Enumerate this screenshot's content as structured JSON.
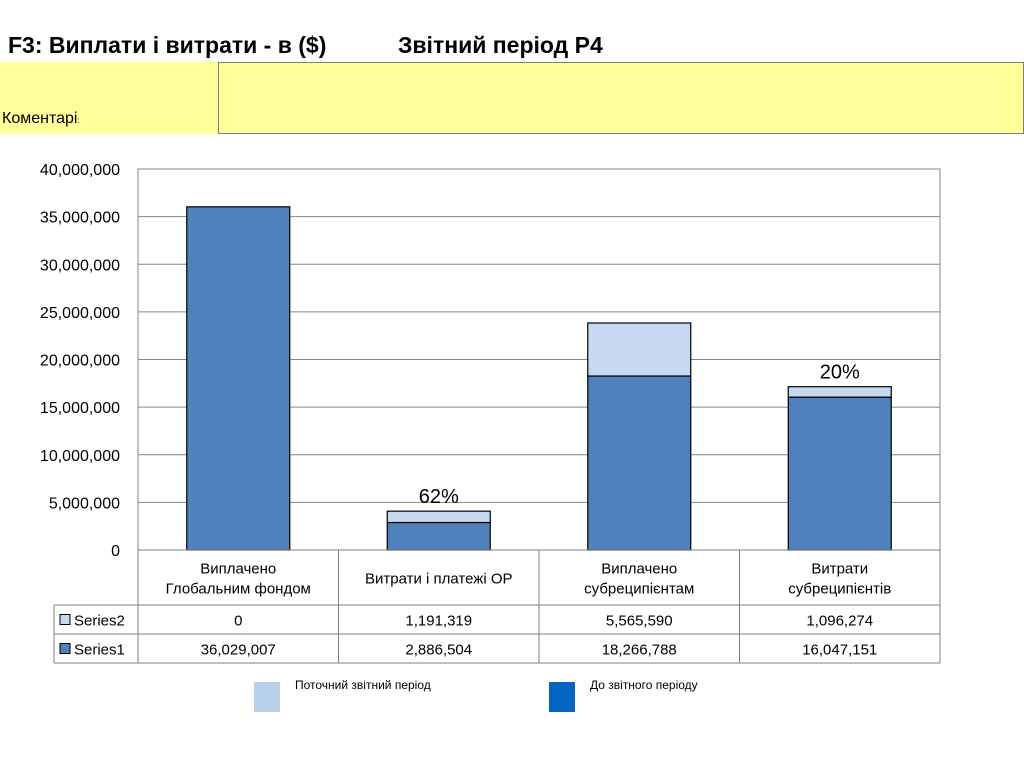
{
  "header": {
    "title": "F3: Виплати і витрати - в ($)",
    "period": "Звітний період Р4"
  },
  "comments": {
    "label": "Коментарі",
    "label_suffix": ":",
    "value": ""
  },
  "chart_data": {
    "type": "bar",
    "stacked": true,
    "categories": [
      [
        "Виплачено",
        "Глобальним фондом"
      ],
      [
        "Витрати і платежі ОР"
      ],
      [
        "Виплачено",
        "субреципієнтам"
      ],
      [
        "Витрати",
        "субреципієнтів"
      ]
    ],
    "series": [
      {
        "name": "Series1",
        "values": [
          36029007,
          2886504,
          18266788,
          16047151
        ],
        "value_labels": [
          "36,029,007",
          "2,886,504",
          "18,266,788",
          "16,047,151"
        ],
        "color": "#4f81bd"
      },
      {
        "name": "Series2",
        "values": [
          0,
          1191319,
          5565590,
          1096274
        ],
        "value_labels": [
          "0",
          "1,191,319",
          "5,565,590",
          "1,096,274"
        ],
        "color": "#c6d9f1"
      }
    ],
    "ylim": [
      0,
      40000000
    ],
    "yticks": [
      0,
      5000000,
      10000000,
      15000000,
      20000000,
      25000000,
      30000000,
      35000000,
      40000000
    ],
    "ytick_labels": [
      "0",
      "5,000,000",
      "10,000,000",
      "15,000,000",
      "20,000,000",
      "25,000,000",
      "30,000,000",
      "35,000,000",
      "40,000,000"
    ],
    "grid": true,
    "annotations": [
      {
        "category_index": 1,
        "text": "62%"
      },
      {
        "category_index": 3,
        "text": "20%"
      }
    ],
    "data_table": true
  },
  "legend": {
    "items": [
      {
        "label": "Поточний звітний період",
        "color": "#b8d0ea"
      },
      {
        "label": "До звітного періоду",
        "color": "#0563c1"
      }
    ]
  }
}
